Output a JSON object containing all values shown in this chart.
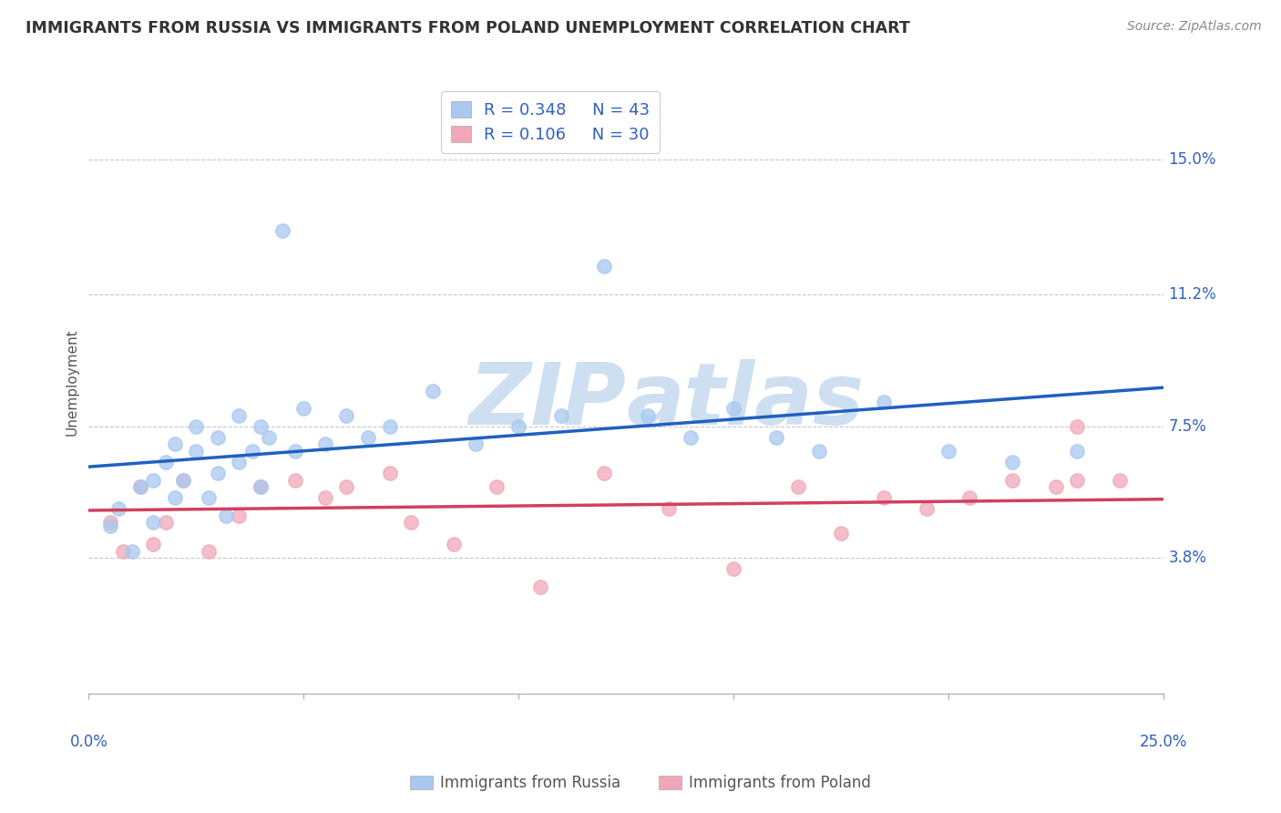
{
  "title": "IMMIGRANTS FROM RUSSIA VS IMMIGRANTS FROM POLAND UNEMPLOYMENT CORRELATION CHART",
  "source": "Source: ZipAtlas.com",
  "ylabel": "Unemployment",
  "ytick_labels": [
    "15.0%",
    "11.2%",
    "7.5%",
    "3.8%"
  ],
  "ytick_values": [
    0.15,
    0.112,
    0.075,
    0.038
  ],
  "xlim": [
    0.0,
    0.25
  ],
  "ylim": [
    0.0,
    0.175
  ],
  "russia_R": 0.348,
  "russia_N": 43,
  "poland_R": 0.106,
  "poland_N": 30,
  "russia_color": "#A8C8F0",
  "poland_color": "#F0A8B8",
  "russia_line_color": "#2060C0",
  "poland_line_color": "#D04060",
  "gridline_color": "#C8C8C8",
  "background_color": "#FFFFFF",
  "title_color": "#333333",
  "axis_label_color": "#3060C0",
  "watermark_color": "#C8DCF0",
  "legend_text_color": "#3060C0",
  "russia_scatter_x": [
    0.005,
    0.007,
    0.01,
    0.012,
    0.015,
    0.015,
    0.018,
    0.02,
    0.02,
    0.022,
    0.025,
    0.025,
    0.028,
    0.03,
    0.03,
    0.032,
    0.035,
    0.035,
    0.038,
    0.04,
    0.04,
    0.042,
    0.045,
    0.048,
    0.05,
    0.055,
    0.06,
    0.065,
    0.07,
    0.08,
    0.09,
    0.1,
    0.11,
    0.12,
    0.13,
    0.14,
    0.15,
    0.16,
    0.17,
    0.185,
    0.2,
    0.215,
    0.23
  ],
  "russia_scatter_y": [
    0.047,
    0.052,
    0.04,
    0.058,
    0.06,
    0.048,
    0.065,
    0.055,
    0.07,
    0.06,
    0.068,
    0.075,
    0.055,
    0.072,
    0.062,
    0.05,
    0.065,
    0.078,
    0.068,
    0.075,
    0.058,
    0.072,
    0.13,
    0.068,
    0.08,
    0.07,
    0.078,
    0.072,
    0.075,
    0.085,
    0.07,
    0.075,
    0.078,
    0.12,
    0.078,
    0.072,
    0.08,
    0.072,
    0.068,
    0.082,
    0.068,
    0.065,
    0.068
  ],
  "poland_scatter_x": [
    0.005,
    0.008,
    0.012,
    0.015,
    0.018,
    0.022,
    0.028,
    0.035,
    0.04,
    0.048,
    0.055,
    0.06,
    0.07,
    0.075,
    0.085,
    0.095,
    0.105,
    0.12,
    0.135,
    0.15,
    0.165,
    0.175,
    0.185,
    0.195,
    0.205,
    0.215,
    0.225,
    0.23,
    0.24,
    0.23
  ],
  "poland_scatter_y": [
    0.048,
    0.04,
    0.058,
    0.042,
    0.048,
    0.06,
    0.04,
    0.05,
    0.058,
    0.06,
    0.055,
    0.058,
    0.062,
    0.048,
    0.042,
    0.058,
    0.03,
    0.062,
    0.052,
    0.035,
    0.058,
    0.045,
    0.055,
    0.052,
    0.055,
    0.06,
    0.058,
    0.06,
    0.06,
    0.075
  ]
}
